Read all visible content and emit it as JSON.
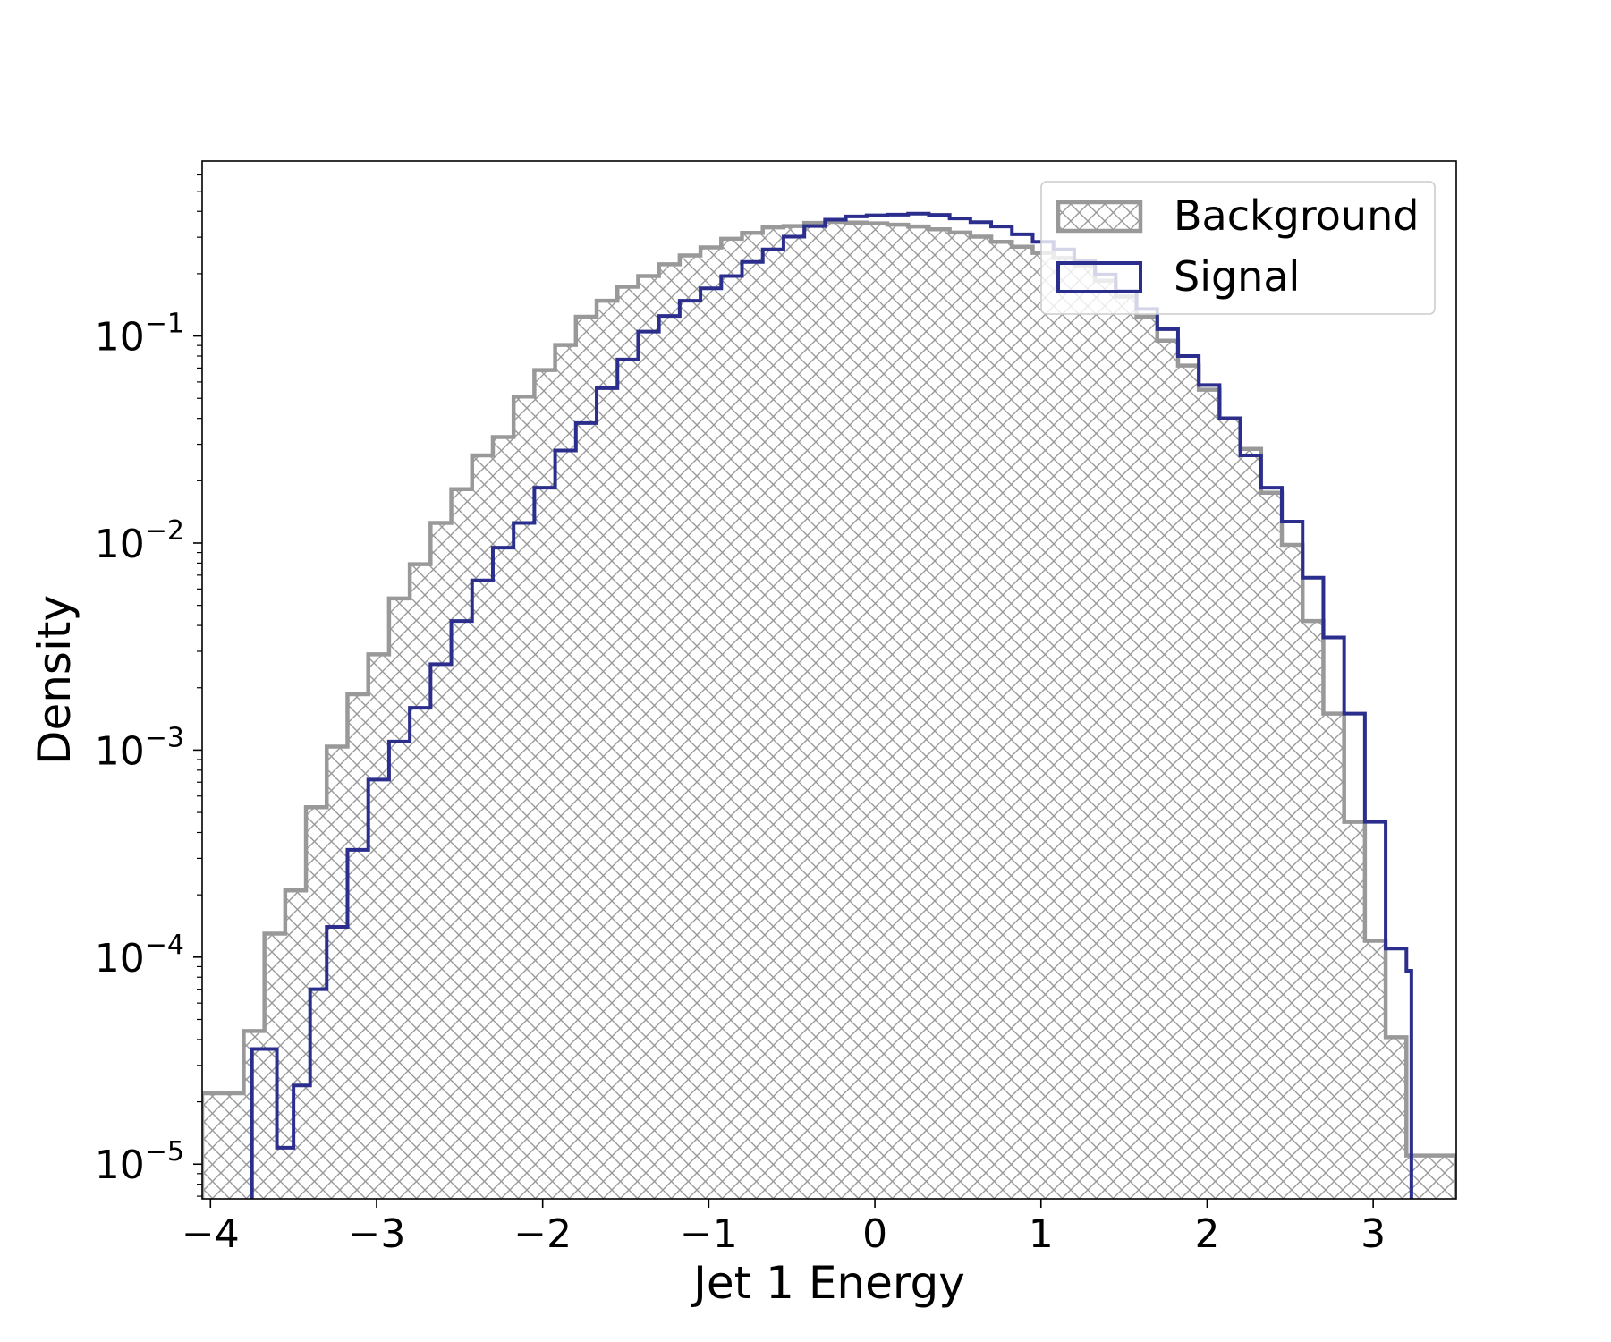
{
  "chart_data": {
    "type": "histogram",
    "xlabel": "Jet 1 Energy",
    "ylabel": "Density",
    "yscale": "log",
    "xlim": [
      -4.05,
      3.5
    ],
    "ylim": [
      6.8e-06,
      0.7
    ],
    "x_ticks": [
      {
        "value": -4,
        "label": "−4"
      },
      {
        "value": -3,
        "label": "−3"
      },
      {
        "value": -2,
        "label": "−2"
      },
      {
        "value": -1,
        "label": "−1"
      },
      {
        "value": 0,
        "label": "0"
      },
      {
        "value": 1,
        "label": "1"
      },
      {
        "value": 2,
        "label": "2"
      },
      {
        "value": 3,
        "label": "3"
      }
    ],
    "y_ticks": [
      {
        "value": 1e-05,
        "base": "10",
        "exp": "−5"
      },
      {
        "value": 0.0001,
        "base": "10",
        "exp": "−4"
      },
      {
        "value": 0.001,
        "base": "10",
        "exp": "−3"
      },
      {
        "value": 0.01,
        "base": "10",
        "exp": "−2"
      },
      {
        "value": 0.1,
        "base": "10",
        "exp": "−1"
      }
    ],
    "grid": false,
    "legend_position": "top-right",
    "series": [
      {
        "name": "Background",
        "color": "#999999",
        "style": "hatched-filled-step",
        "edges": [
          -4.05,
          -3.925,
          -3.8,
          -3.675,
          -3.55,
          -3.425,
          -3.3,
          -3.175,
          -3.05,
          -2.925,
          -2.8,
          -2.675,
          -2.55,
          -2.425,
          -2.3,
          -2.175,
          -2.05,
          -1.925,
          -1.8,
          -1.675,
          -1.55,
          -1.425,
          -1.3,
          -1.175,
          -1.05,
          -0.925,
          -0.8,
          -0.675,
          -0.55,
          -0.425,
          -0.3,
          -0.175,
          -0.05,
          0.075,
          0.2,
          0.325,
          0.45,
          0.575,
          0.7,
          0.825,
          0.95,
          1.075,
          1.2,
          1.325,
          1.45,
          1.575,
          1.7,
          1.825,
          1.95,
          2.075,
          2.2,
          2.325,
          2.45,
          2.575,
          2.7,
          2.825,
          2.95,
          3.075,
          3.2,
          3.325,
          3.5
        ],
        "values": [
          2.2e-05,
          2.2e-05,
          4.4e-05,
          0.00013,
          0.00021,
          0.00053,
          0.00104,
          0.00186,
          0.0029,
          0.0054,
          0.0079,
          0.0125,
          0.0182,
          0.0265,
          0.0325,
          0.051,
          0.0685,
          0.0905,
          0.124,
          0.148,
          0.173,
          0.195,
          0.222,
          0.245,
          0.268,
          0.295,
          0.315,
          0.335,
          0.34,
          0.352,
          0.356,
          0.353,
          0.35,
          0.345,
          0.338,
          0.328,
          0.316,
          0.302,
          0.285,
          0.27,
          0.252,
          0.238,
          0.22,
          0.185,
          0.155,
          0.124,
          0.095,
          0.072,
          0.055,
          0.04,
          0.0285,
          0.0175,
          0.0098,
          0.0042,
          0.0015,
          0.00045,
          0.00012,
          4.1e-05,
          1.1e-05,
          1.1e-05
        ]
      },
      {
        "name": "Signal",
        "color": "#2b2e8c",
        "style": "step",
        "edges": [
          -3.75,
          -3.6,
          -3.5,
          -3.4,
          -3.3,
          -3.175,
          -3.05,
          -2.925,
          -2.8,
          -2.675,
          -2.55,
          -2.425,
          -2.3,
          -2.175,
          -2.05,
          -1.925,
          -1.8,
          -1.675,
          -1.55,
          -1.425,
          -1.3,
          -1.175,
          -1.05,
          -0.925,
          -0.8,
          -0.675,
          -0.55,
          -0.425,
          -0.3,
          -0.175,
          -0.05,
          0.075,
          0.2,
          0.325,
          0.45,
          0.575,
          0.7,
          0.825,
          0.95,
          1.075,
          1.2,
          1.325,
          1.45,
          1.575,
          1.7,
          1.825,
          1.95,
          2.075,
          2.2,
          2.325,
          2.45,
          2.575,
          2.7,
          2.825,
          2.95,
          3.075,
          3.2,
          3.23
        ],
        "values": [
          3.6e-05,
          1.2e-05,
          2.4e-05,
          7e-05,
          0.00014,
          0.00033,
          0.00072,
          0.0011,
          0.0016,
          0.0026,
          0.0042,
          0.0066,
          0.0095,
          0.0125,
          0.0185,
          0.028,
          0.038,
          0.056,
          0.077,
          0.105,
          0.125,
          0.148,
          0.17,
          0.195,
          0.228,
          0.262,
          0.302,
          0.34,
          0.365,
          0.378,
          0.383,
          0.386,
          0.39,
          0.385,
          0.37,
          0.355,
          0.338,
          0.31,
          0.285,
          0.262,
          0.232,
          0.198,
          0.165,
          0.135,
          0.108,
          0.08,
          0.058,
          0.04,
          0.0265,
          0.0185,
          0.0127,
          0.0068,
          0.0035,
          0.0015,
          0.00045,
          0.00011,
          8.6e-05
        ]
      }
    ]
  }
}
